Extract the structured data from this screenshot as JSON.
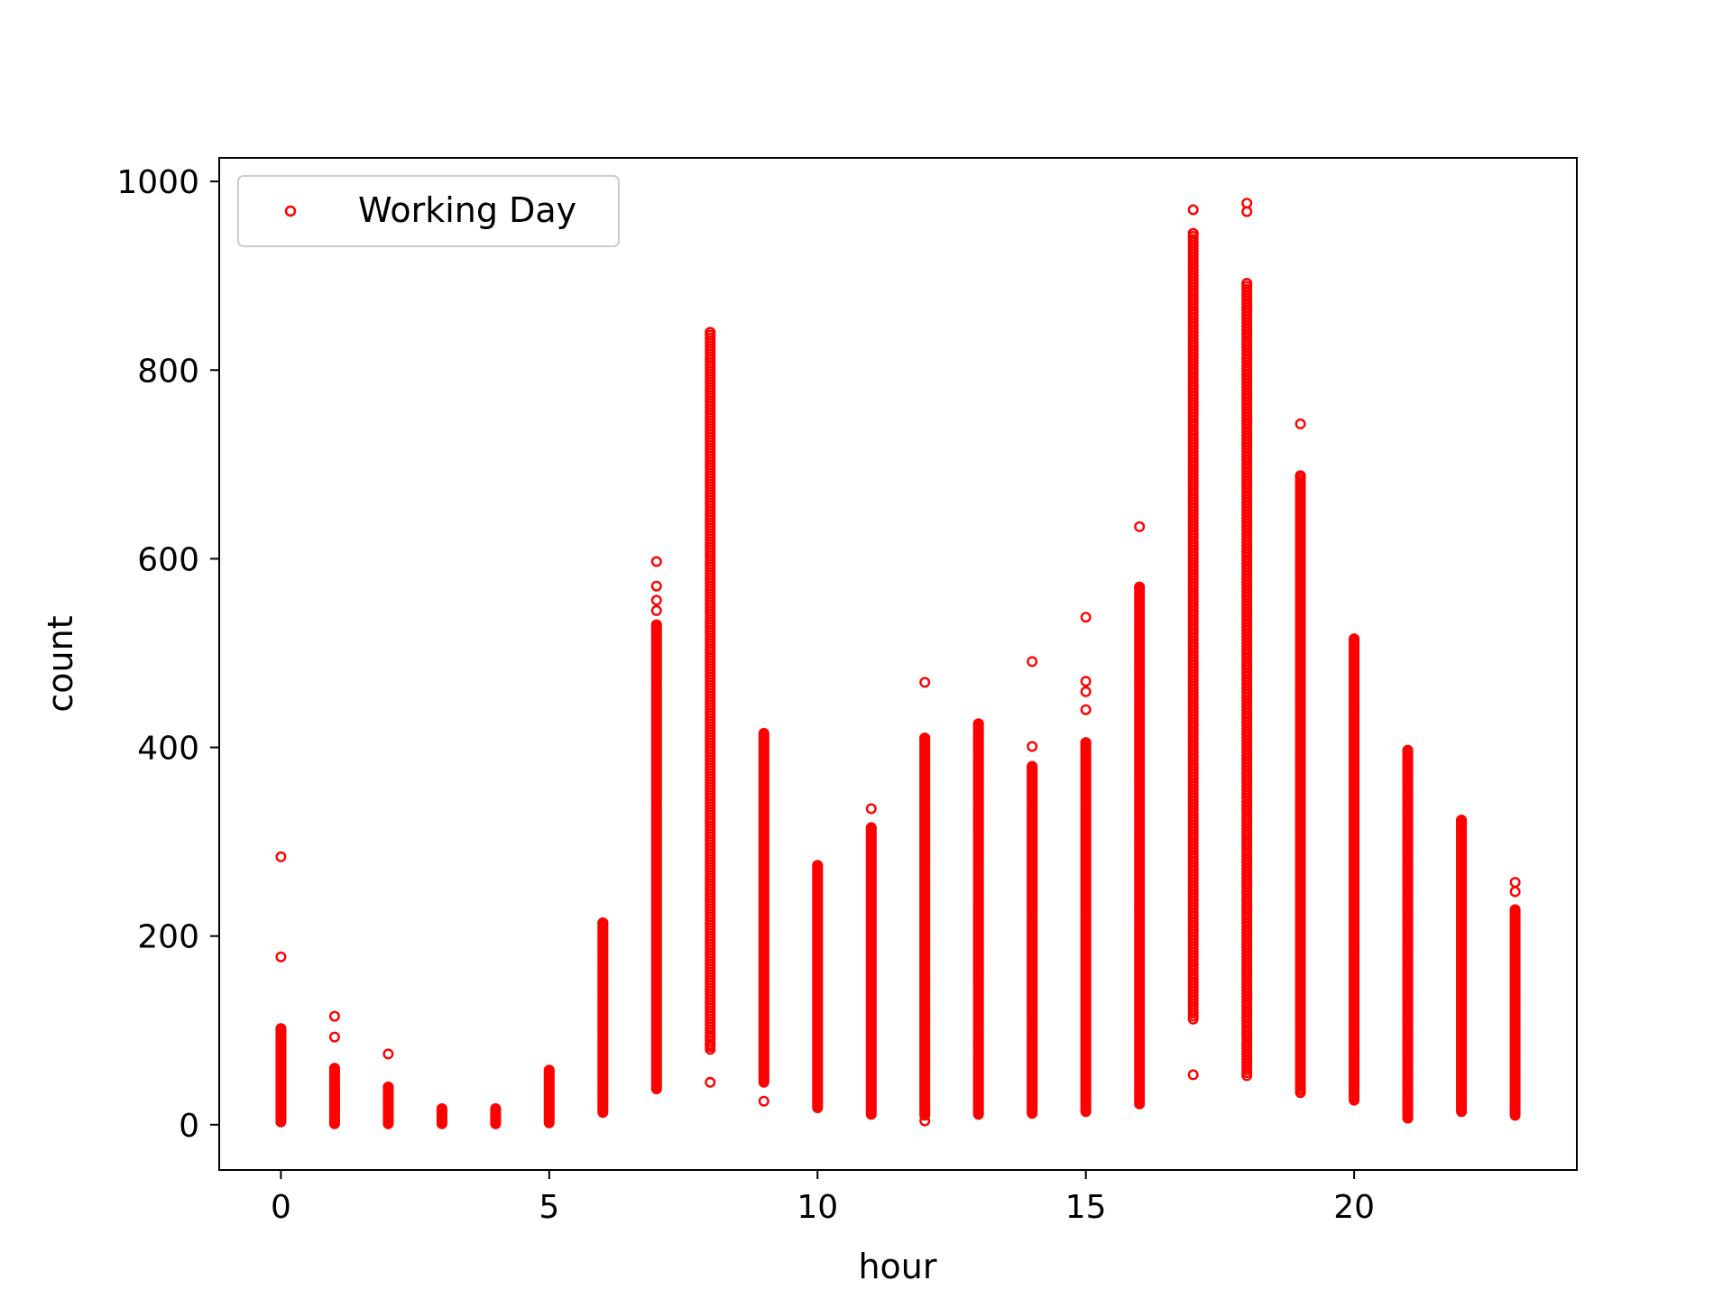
{
  "chart_data": {
    "type": "scatter",
    "title": "",
    "xlabel": "hour",
    "ylabel": "count",
    "xlim": [
      -1.15,
      24.15
    ],
    "ylim": [
      -48,
      1025
    ],
    "xticks": [
      0,
      5,
      10,
      15,
      20
    ],
    "yticks": [
      0,
      200,
      400,
      600,
      800,
      1000
    ],
    "grid": false,
    "legend_position": "top-left",
    "series": [
      {
        "name": "Working Day",
        "color": "#ff0000",
        "marker": "hollow-circle",
        "ranges_by_hour": [
          {
            "hour": 0,
            "min": 3,
            "max": 102
          },
          {
            "hour": 1,
            "min": 1,
            "max": 60
          },
          {
            "hour": 2,
            "min": 1,
            "max": 40
          },
          {
            "hour": 3,
            "min": 1,
            "max": 17
          },
          {
            "hour": 4,
            "min": 1,
            "max": 17
          },
          {
            "hour": 5,
            "min": 2,
            "max": 58
          },
          {
            "hour": 6,
            "min": 13,
            "max": 214
          },
          {
            "hour": 7,
            "min": 38,
            "max": 530
          },
          {
            "hour": 8,
            "min": 80,
            "max": 840
          },
          {
            "hour": 9,
            "min": 45,
            "max": 415
          },
          {
            "hour": 10,
            "min": 18,
            "max": 275
          },
          {
            "hour": 11,
            "min": 11,
            "max": 315
          },
          {
            "hour": 12,
            "min": 10,
            "max": 410
          },
          {
            "hour": 13,
            "min": 11,
            "max": 425
          },
          {
            "hour": 14,
            "min": 12,
            "max": 380
          },
          {
            "hour": 15,
            "min": 14,
            "max": 405
          },
          {
            "hour": 16,
            "min": 22,
            "max": 570
          },
          {
            "hour": 17,
            "min": 112,
            "max": 945
          },
          {
            "hour": 18,
            "min": 52,
            "max": 892
          },
          {
            "hour": 19,
            "min": 34,
            "max": 688
          },
          {
            "hour": 20,
            "min": 26,
            "max": 515
          },
          {
            "hour": 21,
            "min": 7,
            "max": 397
          },
          {
            "hour": 22,
            "min": 14,
            "max": 323
          },
          {
            "hour": 23,
            "min": 10,
            "max": 228
          }
        ],
        "outliers": [
          {
            "x": 0,
            "y": 284
          },
          {
            "x": 0,
            "y": 178
          },
          {
            "x": 1,
            "y": 115
          },
          {
            "x": 1,
            "y": 93
          },
          {
            "x": 2,
            "y": 75
          },
          {
            "x": 7,
            "y": 597
          },
          {
            "x": 7,
            "y": 571
          },
          {
            "x": 7,
            "y": 556
          },
          {
            "x": 7,
            "y": 545
          },
          {
            "x": 8,
            "y": 45
          },
          {
            "x": 8,
            "y": 85
          },
          {
            "x": 8,
            "y": 93
          },
          {
            "x": 9,
            "y": 25
          },
          {
            "x": 11,
            "y": 335
          },
          {
            "x": 12,
            "y": 469
          },
          {
            "x": 12,
            "y": 4
          },
          {
            "x": 14,
            "y": 491
          },
          {
            "x": 14,
            "y": 401
          },
          {
            "x": 15,
            "y": 538
          },
          {
            "x": 15,
            "y": 470
          },
          {
            "x": 15,
            "y": 459
          },
          {
            "x": 15,
            "y": 440
          },
          {
            "x": 16,
            "y": 634
          },
          {
            "x": 17,
            "y": 970
          },
          {
            "x": 17,
            "y": 53
          },
          {
            "x": 18,
            "y": 977
          },
          {
            "x": 18,
            "y": 968
          },
          {
            "x": 19,
            "y": 743
          },
          {
            "x": 21,
            "y": 7
          },
          {
            "x": 23,
            "y": 257
          },
          {
            "x": 23,
            "y": 247
          }
        ]
      }
    ]
  }
}
